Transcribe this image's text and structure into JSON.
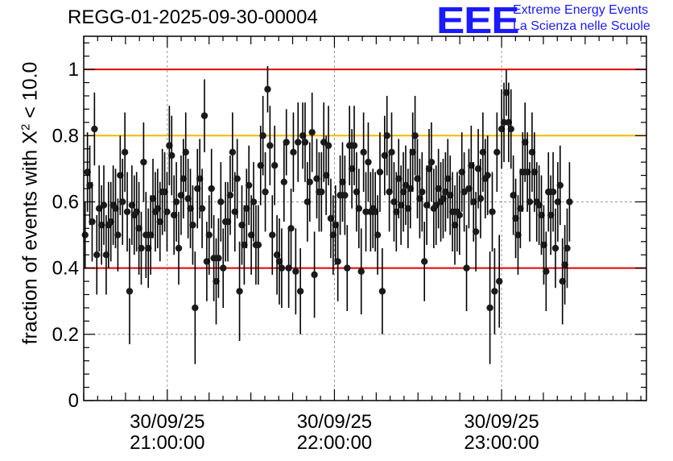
{
  "chart_data": {
    "type": "scatter",
    "title": "REGG-01-2025-09-30-00004",
    "ylabel": "fraction of events with",
    "ylabel_symbol": "X",
    "ylabel_sup": "2",
    "ylabel_tail": " < 10.0",
    "ylim": [
      0,
      1.1
    ],
    "yticks": [
      0,
      0.2,
      0.4,
      0.6,
      0.8,
      1
    ],
    "ytick_labels": [
      "0",
      "0.2",
      "0.4",
      "0.6",
      "0.8",
      "1"
    ],
    "xlim_minutes": [
      1230,
      1432
    ],
    "xticks": [
      {
        "minute": 1260,
        "date": "30/09/25",
        "time": "21:00:00"
      },
      {
        "minute": 1320,
        "date": "30/09/25",
        "time": "22:00:00"
      },
      {
        "minute": 1380,
        "date": "30/09/25",
        "time": "23:00:00"
      }
    ],
    "grid": true,
    "hlines": [
      {
        "y": 1.0,
        "color": "#e00000"
      },
      {
        "y": 0.8,
        "color": "#f5b800"
      },
      {
        "y": 0.4,
        "color": "#e00000"
      }
    ],
    "marker_color": "#1a1a1a",
    "series": [
      {
        "name": "fraction",
        "x_start_minute": 1230.5,
        "x_step_minute": 0.84,
        "y": [
          0.5,
          0.69,
          0.65,
          0.54,
          0.82,
          0.44,
          0.58,
          0.53,
          0.59,
          0.44,
          0.53,
          0.54,
          0.59,
          0.58,
          0.5,
          0.68,
          0.6,
          0.75,
          0.57,
          0.33,
          0.59,
          0.56,
          0.57,
          0.52,
          0.46,
          0.72,
          0.5,
          0.46,
          0.5,
          0.61,
          0.57,
          0.58,
          0.54,
          0.63,
          0.63,
          0.57,
          0.77,
          0.74,
          0.56,
          0.6,
          0.46,
          0.62,
          0.67,
          0.75,
          0.61,
          0.58,
          0.53,
          0.28,
          0.64,
          0.67,
          0.58,
          0.86,
          0.42,
          0.5,
          0.64,
          0.43,
          0.36,
          0.43,
          0.6,
          0.4,
          0.54,
          0.54,
          0.62,
          0.75,
          0.57,
          0.67,
          0.33,
          0.53,
          0.47,
          0.58,
          0.65,
          0.5,
          0.6,
          0.47,
          0.47,
          0.71,
          0.8,
          0.63,
          0.94,
          0.77,
          0.5,
          0.71,
          0.44,
          0.42,
          0.4,
          0.66,
          0.78,
          0.4,
          0.52,
          0.75,
          0.39,
          0.78,
          0.33,
          0.8,
          0.78,
          0.6,
          0.66,
          0.81,
          0.38,
          0.67,
          0.63,
          0.63,
          0.78,
          0.68,
          0.77,
          0.55,
          0.5,
          0.53,
          0.42,
          0.62,
          0.66,
          0.62,
          0.4,
          0.77,
          0.7,
          0.77,
          0.63,
          0.58,
          0.39,
          0.75,
          0.57,
          0.72,
          0.57,
          0.58,
          0.57,
          0.5,
          0.69,
          0.33,
          0.74,
          0.8,
          0.63,
          0.75,
          0.6,
          0.57,
          0.67,
          0.59,
          0.63,
          0.65,
          0.58,
          0.64,
          0.75,
          0.8,
          0.67,
          0.61,
          0.63,
          0.42,
          0.59,
          0.7,
          0.72,
          0.58,
          0.59,
          0.64,
          0.6,
          0.61,
          0.63,
          0.67,
          0.62,
          0.57,
          0.53,
          0.57,
          0.56,
          0.69,
          0.63,
          0.4,
          0.64,
          0.71,
          0.6,
          0.51,
          0.7,
          0.61,
          0.75,
          0.67,
          0.68,
          0.28,
          0.57,
          0.33,
          0.75,
          0.36,
          0.82,
          0.84,
          0.93,
          0.84,
          0.82,
          0.62,
          0.55,
          0.5,
          0.58,
          0.69,
          0.78,
          0.69,
          0.6,
          0.75,
          0.69,
          0.6,
          0.59,
          0.56,
          0.47,
          0.39,
          0.63,
          0.56,
          0.63,
          0.46,
          0.6,
          0.65,
          0.36,
          0.41,
          0.46,
          0.6
        ],
        "err": [
          0.1,
          0.12,
          0.12,
          0.12,
          0.11,
          0.12,
          0.13,
          0.12,
          0.12,
          0.12,
          0.13,
          0.12,
          0.12,
          0.12,
          0.11,
          0.12,
          0.13,
          0.12,
          0.12,
          0.16,
          0.12,
          0.12,
          0.12,
          0.14,
          0.11,
          0.12,
          0.13,
          0.12,
          0.12,
          0.12,
          0.12,
          0.12,
          0.12,
          0.13,
          0.12,
          0.12,
          0.12,
          0.12,
          0.12,
          0.12,
          0.11,
          0.12,
          0.12,
          0.12,
          0.12,
          0.12,
          0.12,
          0.17,
          0.12,
          0.12,
          0.12,
          0.11,
          0.12,
          0.12,
          0.12,
          0.13,
          0.13,
          0.12,
          0.12,
          0.12,
          0.12,
          0.12,
          0.12,
          0.12,
          0.12,
          0.12,
          0.15,
          0.12,
          0.12,
          0.12,
          0.12,
          0.12,
          0.12,
          0.12,
          0.12,
          0.12,
          0.12,
          0.12,
          0.07,
          0.12,
          0.12,
          0.12,
          0.12,
          0.13,
          0.12,
          0.12,
          0.1,
          0.12,
          0.12,
          0.12,
          0.13,
          0.12,
          0.13,
          0.1,
          0.12,
          0.12,
          0.12,
          0.12,
          0.13,
          0.12,
          0.12,
          0.12,
          0.12,
          0.12,
          0.12,
          0.12,
          0.12,
          0.12,
          0.12,
          0.12,
          0.12,
          0.12,
          0.13,
          0.12,
          0.12,
          0.12,
          0.12,
          0.12,
          0.13,
          0.12,
          0.12,
          0.12,
          0.12,
          0.12,
          0.12,
          0.12,
          0.12,
          0.13,
          0.12,
          0.12,
          0.12,
          0.12,
          0.12,
          0.12,
          0.12,
          0.12,
          0.12,
          0.12,
          0.12,
          0.12,
          0.12,
          0.12,
          0.12,
          0.12,
          0.12,
          0.12,
          0.12,
          0.12,
          0.12,
          0.12,
          0.12,
          0.12,
          0.12,
          0.12,
          0.12,
          0.12,
          0.12,
          0.12,
          0.12,
          0.12,
          0.12,
          0.12,
          0.12,
          0.13,
          0.12,
          0.12,
          0.12,
          0.12,
          0.12,
          0.12,
          0.12,
          0.12,
          0.12,
          0.17,
          0.12,
          0.13,
          0.12,
          0.14,
          0.12,
          0.12,
          0.07,
          0.12,
          0.12,
          0.12,
          0.12,
          0.12,
          0.12,
          0.12,
          0.12,
          0.12,
          0.12,
          0.12,
          0.12,
          0.12,
          0.12,
          0.12,
          0.12,
          0.12,
          0.12,
          0.12,
          0.12,
          0.12,
          0.12,
          0.12,
          0.13,
          0.12,
          0.12,
          0.12
        ]
      }
    ]
  },
  "logo": {
    "mark": "EEE",
    "line1": "Extreme Energy Events",
    "line2": "La Scienza nelle Scuole"
  }
}
